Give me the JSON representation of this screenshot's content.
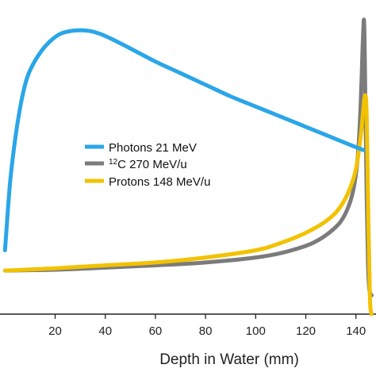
{
  "chart_data": {
    "type": "line",
    "title": "",
    "xlabel": "Depth in Water (mm)",
    "ylabel": "",
    "xlim": [
      -2,
      148
    ],
    "ylim": [
      0,
      100
    ],
    "x_ticks": [
      20,
      40,
      60,
      80,
      100,
      120,
      140
    ],
    "grid": false,
    "legend_position": "center-right",
    "series": [
      {
        "name": "Photons 21 MeV",
        "color": "#2aa6e8",
        "x": [
          0,
          2,
          4,
          6,
          8,
          10,
          14,
          18,
          22,
          26,
          30,
          34,
          38,
          42,
          50,
          60,
          70,
          80,
          90,
          100,
          110,
          120,
          130,
          140,
          143
        ],
        "y": [
          22,
          45,
          60,
          71,
          79,
          84,
          90,
          94,
          96.5,
          97.5,
          97.8,
          97.5,
          96.5,
          95,
          91.5,
          87,
          83,
          79,
          75,
          71.5,
          68,
          64.5,
          61,
          57.5,
          56.5
        ]
      },
      {
        "name": "C 270 MeV/u",
        "name_sup": "12",
        "color": "#7b7b7b",
        "x": [
          0,
          20,
          40,
          60,
          80,
          100,
          110,
          120,
          125,
          130,
          134,
          137,
          139,
          140.5,
          141.5,
          142.2,
          142.8,
          143.3,
          143.8,
          144.3,
          144.8,
          145.3,
          145.8,
          146.3
        ],
        "y": [
          15,
          15.3,
          16,
          16.8,
          17.8,
          19.5,
          21,
          23.5,
          25.5,
          28.5,
          32,
          37,
          43,
          52,
          65,
          80,
          95,
          100,
          70,
          40,
          18,
          9,
          7,
          6.5
        ]
      },
      {
        "name": "Protons 148 MeV/u",
        "color": "#f2c200",
        "x": [
          0,
          20,
          40,
          60,
          80,
          100,
          110,
          120,
          128,
          133,
          137,
          140,
          142,
          143.5,
          144.3,
          145,
          145.6,
          146.2
        ],
        "y": [
          15,
          15.8,
          16.8,
          17.8,
          19.5,
          22,
          24.5,
          28,
          32,
          36,
          42,
          50,
          62,
          75,
          68,
          30,
          5,
          0
        ]
      }
    ]
  }
}
